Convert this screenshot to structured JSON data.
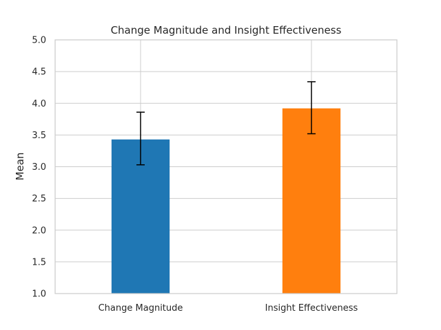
{
  "chart_data": {
    "type": "bar",
    "title": "Change Magnitude and Insight Effectiveness",
    "xlabel": "",
    "ylabel": "Mean",
    "categories": [
      "Change Magnitude",
      "Insight Effectiveness"
    ],
    "values": [
      3.43,
      3.92
    ],
    "error_low": [
      3.03,
      3.52
    ],
    "error_high": [
      3.86,
      4.34
    ],
    "colors": [
      "#1f77b4",
      "#ff7f0e"
    ],
    "ylim": [
      1.0,
      5.0
    ],
    "yticks": [
      "1.0",
      "1.5",
      "2.0",
      "2.5",
      "3.0",
      "3.5",
      "4.0",
      "4.5",
      "5.0"
    ],
    "grid": true
  }
}
